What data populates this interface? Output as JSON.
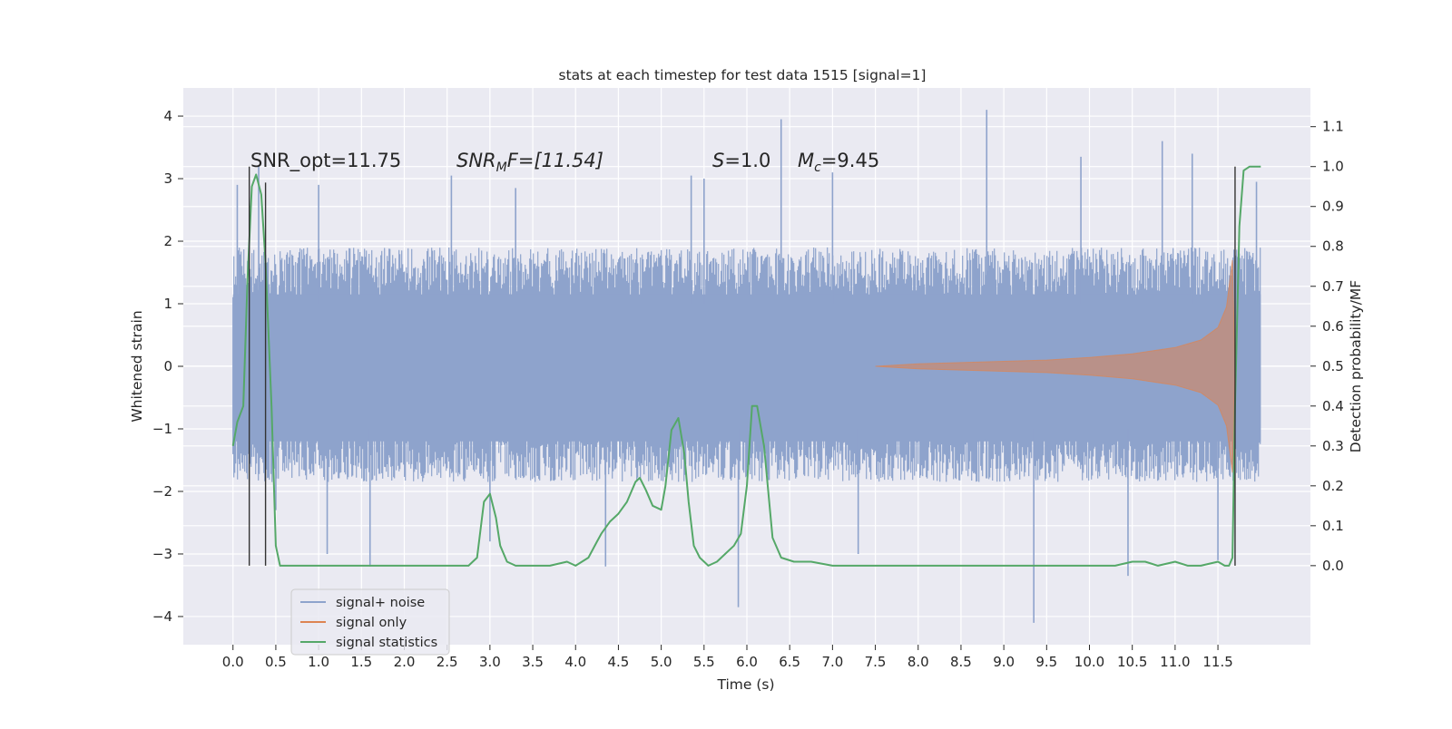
{
  "chart_data": {
    "type": "line",
    "title": "stats at each timestep for test data 1515 [signal=1]",
    "xlabel": "Time (s)",
    "ylabel_left": "Whitened strain",
    "ylabel_right": "Detection probability/MF",
    "xlim": [
      -0.58,
      12.58
    ],
    "ylim_left": [
      -4.45,
      4.45
    ],
    "ylim_right": [
      -0.198,
      1.197
    ],
    "x_ticks": [
      0.0,
      0.5,
      1.0,
      1.5,
      2.0,
      2.5,
      3.0,
      3.5,
      4.0,
      4.5,
      5.0,
      5.5,
      6.0,
      6.5,
      7.0,
      7.5,
      8.0,
      8.5,
      9.0,
      9.5,
      10.0,
      10.5,
      11.0,
      11.5
    ],
    "x_tick_labels": [
      "0.0",
      "0.5",
      "1.0",
      "1.5",
      "2.0",
      "2.5",
      "3.0",
      "3.5",
      "4.0",
      "4.5",
      "5.0",
      "5.5",
      "6.0",
      "6.5",
      "7.0",
      "7.5",
      "8.0",
      "8.5",
      "9.0",
      "9.5",
      "10.0",
      "10.5",
      "11.0",
      "11.5"
    ],
    "y_left_ticks": [
      4,
      3,
      2,
      1,
      0,
      -1,
      -2,
      -3,
      -4
    ],
    "y_left_tick_labels": [
      "4",
      "3",
      "2",
      "1",
      "0",
      "−1",
      "−2",
      "−3",
      "−4"
    ],
    "y_right_ticks": [
      1.1,
      1.0,
      0.9,
      0.8,
      0.7,
      0.6,
      0.5,
      0.4,
      0.3,
      0.2,
      0.1,
      0.0
    ],
    "y_right_tick_labels": [
      "1.1",
      "1.0",
      "0.9",
      "0.8",
      "0.7",
      "0.6",
      "0.5",
      "0.4",
      "0.3",
      "0.2",
      "0.1",
      "0.0"
    ],
    "grid": true,
    "background": "#eaeaf2",
    "legend_position": "bottom-left",
    "legend": [
      {
        "name": "signal+ noise",
        "color": "#8ea3cc"
      },
      {
        "name": "signal only",
        "color": "#dd8452"
      },
      {
        "name": "signal statistics",
        "color": "#55a868"
      }
    ],
    "annotations": {
      "snr_opt": "SNR_opt=11.75",
      "snr_mf_base": "SNR",
      "snr_mf_sub": "M",
      "snr_mf_rest": "F=[11.54]",
      "s_label": "S",
      "s_value": "=1.0",
      "mc_base": "M",
      "mc_sub": "c",
      "mc_value": "=9.45"
    },
    "series": [
      {
        "name": "signal+ noise",
        "axis": "left",
        "color": "#8ea3cc",
        "t_start": 0.0,
        "t_end": 12.0,
        "band_upper_typical": 1.9,
        "band_lower_typical": -1.85,
        "spikes": [
          {
            "x": 0.05,
            "y": 2.9
          },
          {
            "x": 0.3,
            "y": 3.2
          },
          {
            "x": 0.5,
            "y": -2.3
          },
          {
            "x": 1.0,
            "y": 2.9
          },
          {
            "x": 1.1,
            "y": -3.0
          },
          {
            "x": 1.6,
            "y": -3.2
          },
          {
            "x": 2.55,
            "y": 3.05
          },
          {
            "x": 3.0,
            "y": -2.8
          },
          {
            "x": 3.3,
            "y": 2.85
          },
          {
            "x": 4.35,
            "y": -3.2
          },
          {
            "x": 5.35,
            "y": 3.05
          },
          {
            "x": 5.5,
            "y": 3.0
          },
          {
            "x": 5.9,
            "y": -3.85
          },
          {
            "x": 6.4,
            "y": 3.95
          },
          {
            "x": 7.3,
            "y": -3.0
          },
          {
            "x": 7.0,
            "y": 3.1
          },
          {
            "x": 8.8,
            "y": 4.1
          },
          {
            "x": 9.35,
            "y": -4.1
          },
          {
            "x": 9.9,
            "y": 3.35
          },
          {
            "x": 10.45,
            "y": -3.35
          },
          {
            "x": 10.85,
            "y": 3.6
          },
          {
            "x": 11.2,
            "y": 3.4
          },
          {
            "x": 11.5,
            "y": -3.1
          },
          {
            "x": 11.95,
            "y": 2.95
          }
        ]
      },
      {
        "name": "signal only",
        "axis": "left",
        "color": "#dd8452",
        "envelope": [
          {
            "x": 7.5,
            "y": 0.0
          },
          {
            "x": 8.0,
            "y": 0.04
          },
          {
            "x": 8.5,
            "y": 0.06
          },
          {
            "x": 9.0,
            "y": 0.08
          },
          {
            "x": 9.5,
            "y": 0.1
          },
          {
            "x": 10.0,
            "y": 0.14
          },
          {
            "x": 10.5,
            "y": 0.2
          },
          {
            "x": 11.0,
            "y": 0.3
          },
          {
            "x": 11.3,
            "y": 0.42
          },
          {
            "x": 11.5,
            "y": 0.62
          },
          {
            "x": 11.6,
            "y": 0.95
          },
          {
            "x": 11.67,
            "y": 1.7
          },
          {
            "x": 11.7,
            "y": 0.0
          }
        ]
      },
      {
        "name": "signal statistics",
        "axis": "right",
        "color": "#55a868",
        "x": [
          0.0,
          0.05,
          0.12,
          0.17,
          0.22,
          0.27,
          0.33,
          0.38,
          0.45,
          0.5,
          0.55,
          0.62,
          0.8,
          1.0,
          1.5,
          2.0,
          2.5,
          2.75,
          2.85,
          2.93,
          3.0,
          3.07,
          3.12,
          3.2,
          3.3,
          3.45,
          3.7,
          3.9,
          4.0,
          4.15,
          4.25,
          4.3,
          4.4,
          4.5,
          4.6,
          4.7,
          4.75,
          4.82,
          4.9,
          5.0,
          5.05,
          5.12,
          5.2,
          5.27,
          5.32,
          5.38,
          5.45,
          5.55,
          5.65,
          5.75,
          5.85,
          5.93,
          6.0,
          6.06,
          6.12,
          6.2,
          6.3,
          6.4,
          6.55,
          6.75,
          7.0,
          7.5,
          7.8,
          8.0,
          8.5,
          9.0,
          9.5,
          10.0,
          10.3,
          10.5,
          10.65,
          10.8,
          11.0,
          11.15,
          11.3,
          11.5,
          11.58,
          11.63,
          11.67,
          11.7,
          11.75,
          11.8,
          11.87,
          12.0
        ],
        "y": [
          0.3,
          0.36,
          0.4,
          0.72,
          0.95,
          0.98,
          0.93,
          0.76,
          0.4,
          0.05,
          0.0,
          0.0,
          0.0,
          0.0,
          0.0,
          0.0,
          0.0,
          0.0,
          0.02,
          0.16,
          0.18,
          0.12,
          0.05,
          0.01,
          0.0,
          0.0,
          0.0,
          0.01,
          0.0,
          0.02,
          0.06,
          0.08,
          0.11,
          0.13,
          0.16,
          0.21,
          0.22,
          0.19,
          0.15,
          0.14,
          0.2,
          0.34,
          0.37,
          0.28,
          0.16,
          0.05,
          0.02,
          0.0,
          0.01,
          0.03,
          0.05,
          0.08,
          0.2,
          0.4,
          0.4,
          0.3,
          0.07,
          0.02,
          0.01,
          0.01,
          0.0,
          0.0,
          0.0,
          0.0,
          0.0,
          0.0,
          0.0,
          0.0,
          0.0,
          0.01,
          0.01,
          0.0,
          0.01,
          0.0,
          0.0,
          0.01,
          0.0,
          0.0,
          0.02,
          0.4,
          0.85,
          0.99,
          1.0,
          1.0
        ]
      }
    ],
    "vertical_markers": [
      {
        "x": 0.19,
        "y_from": 0.0,
        "y_to": 1.0,
        "color": "#333333"
      },
      {
        "x": 0.38,
        "y_from": 0.0,
        "y_to": 0.96,
        "color": "#333333"
      },
      {
        "x": 11.7,
        "y_from": 0.0,
        "y_to": 1.0,
        "color": "#333333"
      }
    ]
  }
}
